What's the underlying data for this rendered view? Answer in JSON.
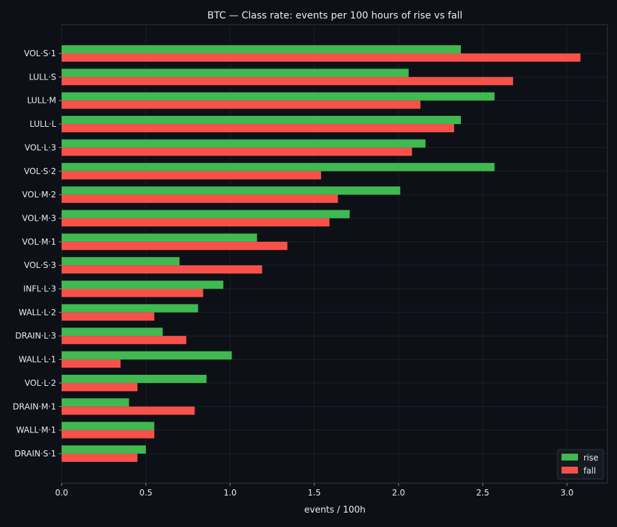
{
  "chart_data": {
    "type": "bar",
    "orientation": "horizontal",
    "title": "BTC — Class rate: events per 100 hours of rise vs fall",
    "xlabel": "events / 100h",
    "ylabel": "",
    "xlim": [
      0.0,
      3.24
    ],
    "xticks": [
      "0.0",
      "0.5",
      "1.0",
      "1.5",
      "2.0",
      "2.5",
      "3.0"
    ],
    "grid": true,
    "legend_position": "bottom-right",
    "categories": [
      "VOL·S·1",
      "LULL·S",
      "LULL·M",
      "LULL·L",
      "VOL·L·3",
      "VOL·S·2",
      "VOL·M·2",
      "VOL·M·3",
      "VOL·M·1",
      "VOL·S·3",
      "INFL·L·3",
      "WALL·L·2",
      "DRAIN·L·3",
      "WALL·L·1",
      "VOL·L·2",
      "DRAIN·M·1",
      "WALL·M·1",
      "DRAIN·S·1"
    ],
    "series": [
      {
        "name": "rise",
        "color": "#3fb950",
        "values": [
          2.37,
          2.06,
          2.57,
          2.37,
          2.16,
          2.57,
          2.01,
          1.71,
          1.16,
          0.7,
          0.96,
          0.81,
          0.6,
          1.01,
          0.86,
          0.4,
          0.55,
          0.5
        ]
      },
      {
        "name": "fall",
        "color": "#f85149",
        "values": [
          3.08,
          2.68,
          2.13,
          2.33,
          2.08,
          1.54,
          1.64,
          1.59,
          1.34,
          1.19,
          0.84,
          0.55,
          0.74,
          0.35,
          0.45,
          0.79,
          0.55,
          0.45
        ]
      }
    ]
  },
  "colors": {
    "background": "#0d1117",
    "text": "#e6edf3",
    "axis": "#30363d",
    "grid": "#1c2128"
  }
}
